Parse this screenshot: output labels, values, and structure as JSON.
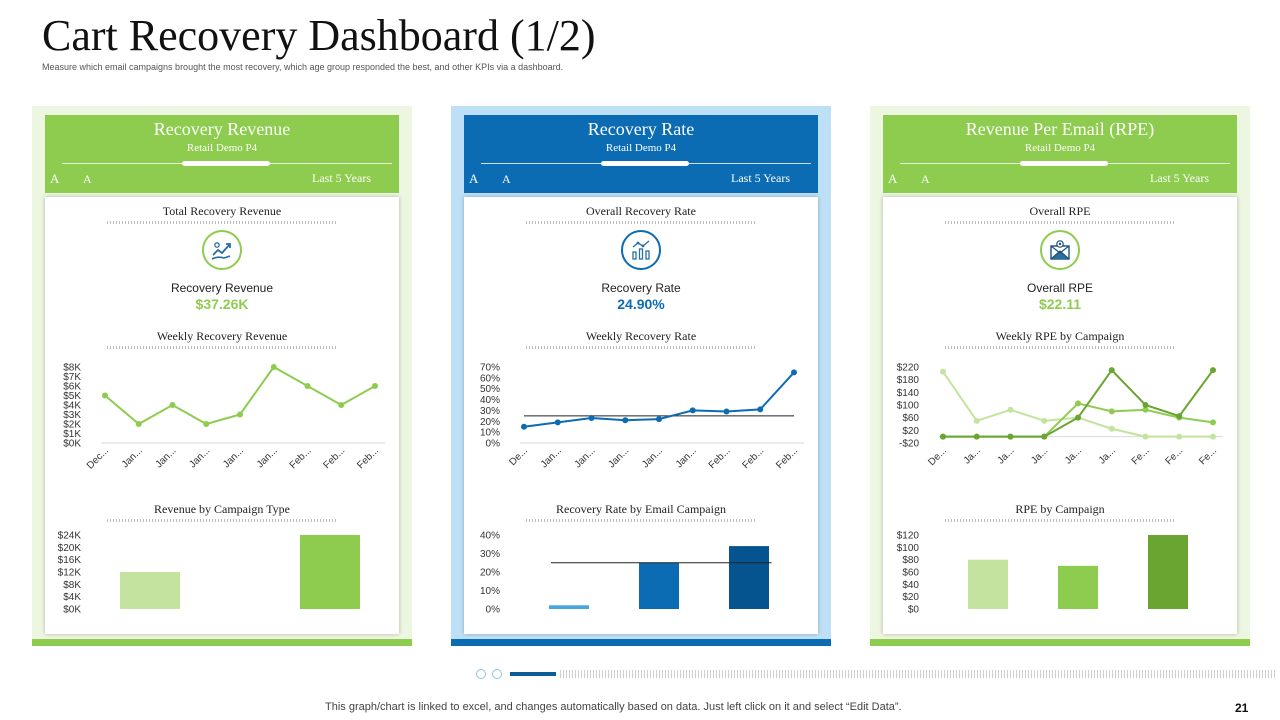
{
  "page": {
    "title": "Cart Recovery Dashboard (1/2)",
    "subtitle": "Measure which email campaigns brought the most recovery, which age group responded the best, and other KPIs  via a dashboard.",
    "footer_note": "This graph/chart is linked to excel,  and changes automatically based on data. Just left click on it and select “Edit Data”.",
    "page_number": "21"
  },
  "colors": {
    "green": "#8dcc4e",
    "green_light": "#edf6e1",
    "blue": "#0b6cb4",
    "blue_light": "#bee0f6",
    "green_pale": "#c3e39e",
    "green_dark": "#69a530",
    "blue_pale": "#4aa6de",
    "blue_dark": "#06548f"
  },
  "panels": [
    {
      "header_title": "Recovery Revenue",
      "header_sub": "Retail Demo P4",
      "font_a1": "A",
      "font_a2": "A",
      "period": "Last 5 Years",
      "kpi_section_title": "Total Recovery Revenue",
      "icon": "money-growth-icon",
      "kpi_label": "Recovery  Revenue",
      "kpi_value": "$37.26K",
      "line_title": "Weekly Recovery  Revenue",
      "bar_title": "Revenue  by Campaign  Type"
    },
    {
      "header_title": "Recovery Rate",
      "header_sub": "Retail Demo P4",
      "font_a1": "A",
      "font_a2": "A",
      "period": "Last 5 Years",
      "kpi_section_title": "Overall  Recovery  Rate",
      "icon": "bar-chart-icon",
      "kpi_label": "Recovery  Rate",
      "kpi_value": "24.90%",
      "line_title": "Weekly  Recovery  Rate",
      "bar_title": "Recovery  Rate by Email Campaign"
    },
    {
      "header_title": "Revenue Per Email (RPE)",
      "header_sub": "Retail Demo P4",
      "font_a1": "A",
      "font_a2": "A",
      "period": "Last 5 Years",
      "kpi_section_title": "Overall  RPE",
      "icon": "email-icon",
      "kpi_label": "Overall  RPE",
      "kpi_value": "$22.11",
      "line_title": "Weekly RPE by Campaign",
      "bar_title": "RPE by Campaign"
    }
  ],
  "chart_data": [
    {
      "type": "line",
      "categories": [
        "Dec...",
        "Jan...",
        "Jan...",
        "Jan...",
        "Jan...",
        "Jan...",
        "Feb...",
        "Feb...",
        "Feb..."
      ],
      "series": [
        {
          "values": [
            5000,
            2000,
            4000,
            2000,
            3000,
            8000,
            6000,
            4000,
            6000
          ]
        }
      ],
      "yticks": [
        "$0K",
        "$1K",
        "$2K",
        "$3K",
        "$4K",
        "$5K",
        "$6K",
        "$7K",
        "$8K"
      ],
      "ylim": [
        0,
        8000
      ]
    },
    {
      "type": "bar",
      "categories": [
        "",
        "",
        ""
      ],
      "values": [
        12000,
        0,
        24000
      ],
      "yticks": [
        "$0K",
        "$4K",
        "$8K",
        "$12K",
        "$16K",
        "$20K",
        "$24K"
      ],
      "ylim": [
        0,
        24000
      ]
    },
    {
      "type": "line",
      "categories": [
        "De...",
        "Jan...",
        "Jan...",
        "Jan...",
        "Jan...",
        "Jan...",
        "Feb...",
        "Feb...",
        "Feb..."
      ],
      "series": [
        {
          "values": [
            15,
            19,
            23,
            21,
            22,
            30,
            29,
            31,
            65
          ]
        }
      ],
      "reference_line": 25,
      "yticks": [
        "0%",
        "10%",
        "20%",
        "30%",
        "40%",
        "50%",
        "60%",
        "70%"
      ],
      "ylim": [
        0,
        70
      ]
    },
    {
      "type": "bar",
      "categories": [
        "",
        "",
        ""
      ],
      "values": [
        2,
        25,
        34
      ],
      "reference_line": 25,
      "yticks": [
        "0%",
        "10%",
        "20%",
        "30%",
        "40%"
      ],
      "ylim": [
        0,
        40
      ]
    },
    {
      "type": "line",
      "categories": [
        "De...",
        "Ja...",
        "Ja...",
        "Ja...",
        "Ja...",
        "Ja...",
        "Fe...",
        "Fe...",
        "Fe..."
      ],
      "series": [
        {
          "values": [
            205,
            50,
            85,
            50,
            60,
            25,
            0,
            0,
            0
          ]
        },
        {
          "values": [
            0,
            0,
            0,
            0,
            105,
            80,
            85,
            60,
            45
          ]
        },
        {
          "values": [
            0,
            0,
            0,
            0,
            60,
            210,
            100,
            65,
            210
          ]
        }
      ],
      "yticks": [
        "-$20",
        "$20",
        "$60",
        "$100",
        "$140",
        "$180",
        "$220"
      ],
      "ylim": [
        -20,
        220
      ]
    },
    {
      "type": "bar",
      "categories": [
        "",
        "",
        ""
      ],
      "values": [
        80,
        70,
        120
      ],
      "yticks": [
        "$0",
        "$20",
        "$40",
        "$60",
        "$80",
        "$100",
        "$120"
      ],
      "ylim": [
        0,
        120
      ]
    }
  ]
}
